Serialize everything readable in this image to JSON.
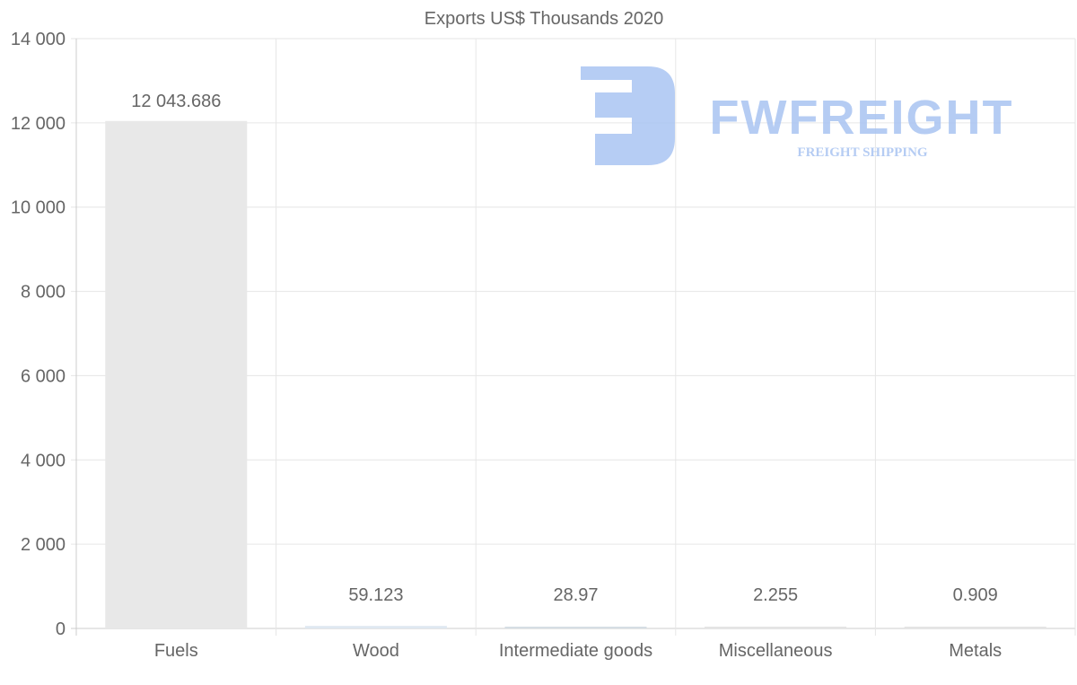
{
  "chart_data": {
    "type": "bar",
    "title": "Exports US$ Thousands 2020",
    "categories": [
      "Fuels",
      "Wood",
      "Intermediate goods",
      "Miscellaneous",
      "Metals"
    ],
    "values": [
      12043.686,
      59.123,
      28.97,
      2.255,
      0.909
    ],
    "value_labels": [
      "12 043.686",
      "59.123",
      "28.97",
      "2.255",
      "0.909"
    ],
    "bar_colors": [
      "#e8e8e8",
      "#dfe8f1",
      "#d6dee4",
      "#e4e4e4",
      "#e4e4e4"
    ],
    "ylim": [
      0,
      14000
    ],
    "yticks": [
      0,
      2000,
      4000,
      6000,
      8000,
      10000,
      12000,
      14000
    ],
    "ytick_labels": [
      "0",
      "2 000",
      "4 000",
      "6 000",
      "8 000",
      "10 000",
      "12 000",
      "14 000"
    ],
    "xlabel": "",
    "ylabel": "",
    "grid": true,
    "legend": "none"
  },
  "watermark": {
    "brand": "FWFREIGHT",
    "tagline": "FREIGHT SHIPPING",
    "color": "#a9c4f2"
  }
}
